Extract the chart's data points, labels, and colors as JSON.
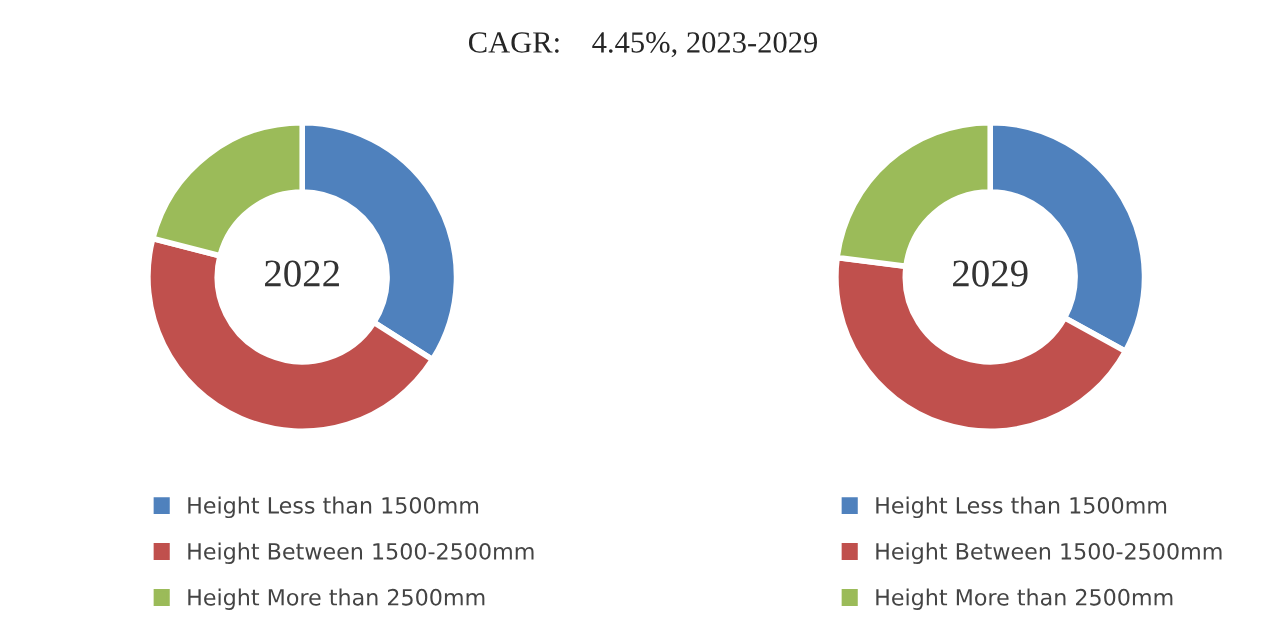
{
  "chart_data": [
    {
      "type": "donut",
      "title": "CAGR:    4.45%, 2023-2029",
      "annotations": [
        "2022"
      ],
      "legend": "bottom",
      "categories": [
        "Height Less than 1500mm",
        "Height Between 1500-2500mm",
        "Height More than 2500mm"
      ],
      "values": [
        34,
        45,
        21
      ],
      "colors": [
        "#4f81bd",
        "#c0504d",
        "#9bbb59"
      ]
    },
    {
      "type": "donut",
      "annotations": [
        "2029"
      ],
      "legend": "bottom",
      "categories": [
        "Height Less than 1500mm",
        "Height Between 1500-2500mm",
        "Height More than 2500mm"
      ],
      "values": [
        33,
        44,
        23
      ],
      "colors": [
        "#4f81bd",
        "#c0504d",
        "#9bbb59"
      ]
    }
  ]
}
